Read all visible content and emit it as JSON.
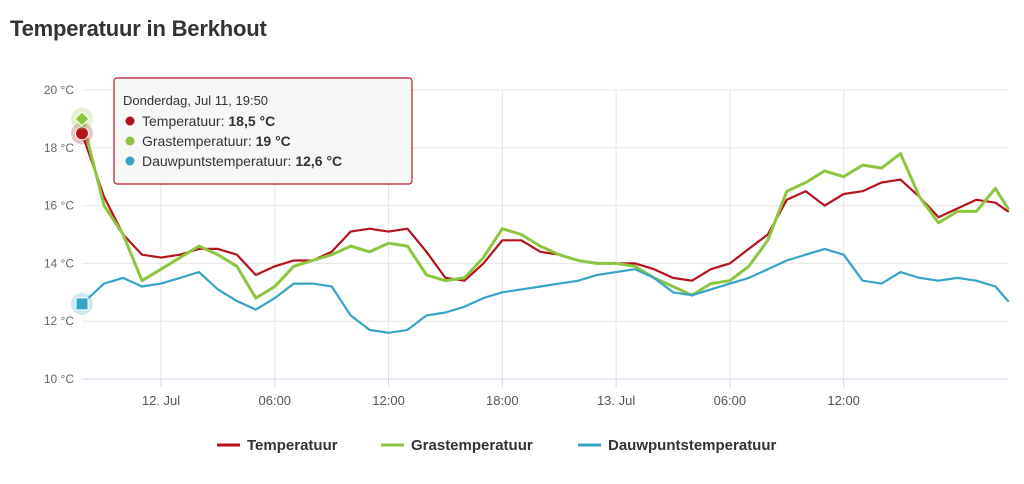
{
  "title": "Temperatuur in Berkhout",
  "colors": {
    "temperatuur": "#b5121b",
    "grastemperatuur": "#8cc63f",
    "dauwpunt": "#35a4c7",
    "grid": "#e6e6e6"
  },
  "tooltip": {
    "header": "Donderdag, Jul 11, 19:50",
    "rows": [
      {
        "name": "Temperatuur",
        "value": "18,5 °C"
      },
      {
        "name": "Grastemperatuur",
        "value": "19 °C"
      },
      {
        "name": "Dauwpuntstemperatuur",
        "value": "12,6 °C"
      }
    ]
  },
  "chart_data": {
    "type": "line",
    "title": "Temperatuur in Berkhout",
    "xlabel": "",
    "ylabel": "",
    "ylim": [
      10,
      20
    ],
    "xlim": [
      "2024-07-11T19:50",
      "2024-07-13T20:40"
    ],
    "y_ticks": [
      "10 °C",
      "12 °C",
      "14 °C",
      "16 °C",
      "18 °C",
      "20 °C"
    ],
    "x_ticks": [
      {
        "t": "2024-07-12T00:00",
        "label": "12. Jul"
      },
      {
        "t": "2024-07-12T06:00",
        "label": "06:00"
      },
      {
        "t": "2024-07-12T12:00",
        "label": "12:00"
      },
      {
        "t": "2024-07-12T18:00",
        "label": "18:00"
      },
      {
        "t": "2024-07-13T00:00",
        "label": "13. Jul"
      },
      {
        "t": "2024-07-13T06:00",
        "label": "06:00"
      },
      {
        "t": "2024-07-13T12:00",
        "label": "12:00"
      }
    ],
    "legend_position": "bottom",
    "grid": true,
    "series": [
      {
        "name": "Temperatuur",
        "points": [
          [
            "2024-07-11T19:50",
            18.5
          ],
          [
            "2024-07-11T21:00",
            16.3
          ],
          [
            "2024-07-11T22:00",
            15.0
          ],
          [
            "2024-07-11T23:00",
            14.3
          ],
          [
            "2024-07-12T00:00",
            14.2
          ],
          [
            "2024-07-12T01:00",
            14.3
          ],
          [
            "2024-07-12T02:00",
            14.5
          ],
          [
            "2024-07-12T03:00",
            14.5
          ],
          [
            "2024-07-12T04:00",
            14.3
          ],
          [
            "2024-07-12T05:00",
            13.6
          ],
          [
            "2024-07-12T06:00",
            13.9
          ],
          [
            "2024-07-12T07:00",
            14.1
          ],
          [
            "2024-07-12T08:00",
            14.1
          ],
          [
            "2024-07-12T09:00",
            14.4
          ],
          [
            "2024-07-12T10:00",
            15.1
          ],
          [
            "2024-07-12T11:00",
            15.2
          ],
          [
            "2024-07-12T12:00",
            15.1
          ],
          [
            "2024-07-12T13:00",
            15.2
          ],
          [
            "2024-07-12T14:00",
            14.4
          ],
          [
            "2024-07-12T15:00",
            13.5
          ],
          [
            "2024-07-12T16:00",
            13.4
          ],
          [
            "2024-07-12T17:00",
            14.0
          ],
          [
            "2024-07-12T18:00",
            14.8
          ],
          [
            "2024-07-12T19:00",
            14.8
          ],
          [
            "2024-07-12T20:00",
            14.4
          ],
          [
            "2024-07-12T21:00",
            14.3
          ],
          [
            "2024-07-12T22:00",
            14.1
          ],
          [
            "2024-07-12T23:00",
            14.0
          ],
          [
            "2024-07-13T00:00",
            14.0
          ],
          [
            "2024-07-13T01:00",
            14.0
          ],
          [
            "2024-07-13T02:00",
            13.8
          ],
          [
            "2024-07-13T03:00",
            13.5
          ],
          [
            "2024-07-13T04:00",
            13.4
          ],
          [
            "2024-07-13T05:00",
            13.8
          ],
          [
            "2024-07-13T06:00",
            14.0
          ],
          [
            "2024-07-13T07:00",
            14.5
          ],
          [
            "2024-07-13T08:00",
            15.0
          ],
          [
            "2024-07-13T09:00",
            16.2
          ],
          [
            "2024-07-13T10:00",
            16.5
          ],
          [
            "2024-07-13T11:00",
            16.0
          ],
          [
            "2024-07-13T12:00",
            16.4
          ],
          [
            "2024-07-13T13:00",
            16.5
          ],
          [
            "2024-07-13T14:00",
            16.8
          ],
          [
            "2024-07-13T15:00",
            16.9
          ],
          [
            "2024-07-13T16:00",
            16.3
          ],
          [
            "2024-07-13T17:00",
            15.6
          ],
          [
            "2024-07-13T18:00",
            15.9
          ],
          [
            "2024-07-13T19:00",
            16.2
          ],
          [
            "2024-07-13T20:00",
            16.1
          ],
          [
            "2024-07-13T20:40",
            15.8
          ]
        ]
      },
      {
        "name": "Grastemperatuur",
        "points": [
          [
            "2024-07-11T19:50",
            19.0
          ],
          [
            "2024-07-11T21:00",
            16.0
          ],
          [
            "2024-07-11T22:00",
            15.0
          ],
          [
            "2024-07-11T23:00",
            13.4
          ],
          [
            "2024-07-12T00:00",
            13.8
          ],
          [
            "2024-07-12T01:00",
            14.2
          ],
          [
            "2024-07-12T02:00",
            14.6
          ],
          [
            "2024-07-12T03:00",
            14.3
          ],
          [
            "2024-07-12T04:00",
            13.9
          ],
          [
            "2024-07-12T05:00",
            12.8
          ],
          [
            "2024-07-12T06:00",
            13.2
          ],
          [
            "2024-07-12T07:00",
            13.9
          ],
          [
            "2024-07-12T08:00",
            14.1
          ],
          [
            "2024-07-12T09:00",
            14.3
          ],
          [
            "2024-07-12T10:00",
            14.6
          ],
          [
            "2024-07-12T11:00",
            14.4
          ],
          [
            "2024-07-12T12:00",
            14.7
          ],
          [
            "2024-07-12T13:00",
            14.6
          ],
          [
            "2024-07-12T14:00",
            13.6
          ],
          [
            "2024-07-12T15:00",
            13.4
          ],
          [
            "2024-07-12T16:00",
            13.5
          ],
          [
            "2024-07-12T17:00",
            14.2
          ],
          [
            "2024-07-12T18:00",
            15.2
          ],
          [
            "2024-07-12T19:00",
            15.0
          ],
          [
            "2024-07-12T20:00",
            14.6
          ],
          [
            "2024-07-12T21:00",
            14.3
          ],
          [
            "2024-07-12T22:00",
            14.1
          ],
          [
            "2024-07-12T23:00",
            14.0
          ],
          [
            "2024-07-13T00:00",
            14.0
          ],
          [
            "2024-07-13T01:00",
            13.9
          ],
          [
            "2024-07-13T02:00",
            13.5
          ],
          [
            "2024-07-13T03:00",
            13.2
          ],
          [
            "2024-07-13T04:00",
            12.9
          ],
          [
            "2024-07-13T05:00",
            13.3
          ],
          [
            "2024-07-13T06:00",
            13.4
          ],
          [
            "2024-07-13T07:00",
            13.9
          ],
          [
            "2024-07-13T08:00",
            14.8
          ],
          [
            "2024-07-13T09:00",
            16.5
          ],
          [
            "2024-07-13T10:00",
            16.8
          ],
          [
            "2024-07-13T11:00",
            17.2
          ],
          [
            "2024-07-13T12:00",
            17.0
          ],
          [
            "2024-07-13T13:00",
            17.4
          ],
          [
            "2024-07-13T14:00",
            17.3
          ],
          [
            "2024-07-13T15:00",
            17.8
          ],
          [
            "2024-07-13T16:00",
            16.3
          ],
          [
            "2024-07-13T17:00",
            15.4
          ],
          [
            "2024-07-13T18:00",
            15.8
          ],
          [
            "2024-07-13T19:00",
            15.8
          ],
          [
            "2024-07-13T20:00",
            16.6
          ],
          [
            "2024-07-13T20:40",
            15.9
          ]
        ]
      },
      {
        "name": "Dauwpuntstemperatuur",
        "points": [
          [
            "2024-07-11T19:50",
            12.6
          ],
          [
            "2024-07-11T21:00",
            13.3
          ],
          [
            "2024-07-11T22:00",
            13.5
          ],
          [
            "2024-07-11T23:00",
            13.2
          ],
          [
            "2024-07-12T00:00",
            13.3
          ],
          [
            "2024-07-12T01:00",
            13.5
          ],
          [
            "2024-07-12T02:00",
            13.7
          ],
          [
            "2024-07-12T03:00",
            13.1
          ],
          [
            "2024-07-12T04:00",
            12.7
          ],
          [
            "2024-07-12T05:00",
            12.4
          ],
          [
            "2024-07-12T06:00",
            12.8
          ],
          [
            "2024-07-12T07:00",
            13.3
          ],
          [
            "2024-07-12T08:00",
            13.3
          ],
          [
            "2024-07-12T09:00",
            13.2
          ],
          [
            "2024-07-12T10:00",
            12.2
          ],
          [
            "2024-07-12T11:00",
            11.7
          ],
          [
            "2024-07-12T12:00",
            11.6
          ],
          [
            "2024-07-12T13:00",
            11.7
          ],
          [
            "2024-07-12T14:00",
            12.2
          ],
          [
            "2024-07-12T15:00",
            12.3
          ],
          [
            "2024-07-12T16:00",
            12.5
          ],
          [
            "2024-07-12T17:00",
            12.8
          ],
          [
            "2024-07-12T18:00",
            13.0
          ],
          [
            "2024-07-12T19:00",
            13.1
          ],
          [
            "2024-07-12T20:00",
            13.2
          ],
          [
            "2024-07-12T21:00",
            13.3
          ],
          [
            "2024-07-12T22:00",
            13.4
          ],
          [
            "2024-07-12T23:00",
            13.6
          ],
          [
            "2024-07-13T00:00",
            13.7
          ],
          [
            "2024-07-13T01:00",
            13.8
          ],
          [
            "2024-07-13T02:00",
            13.5
          ],
          [
            "2024-07-13T03:00",
            13.0
          ],
          [
            "2024-07-13T04:00",
            12.9
          ],
          [
            "2024-07-13T05:00",
            13.1
          ],
          [
            "2024-07-13T06:00",
            13.3
          ],
          [
            "2024-07-13T07:00",
            13.5
          ],
          [
            "2024-07-13T08:00",
            13.8
          ],
          [
            "2024-07-13T09:00",
            14.1
          ],
          [
            "2024-07-13T10:00",
            14.3
          ],
          [
            "2024-07-13T11:00",
            14.5
          ],
          [
            "2024-07-13T12:00",
            14.3
          ],
          [
            "2024-07-13T13:00",
            13.4
          ],
          [
            "2024-07-13T14:00",
            13.3
          ],
          [
            "2024-07-13T15:00",
            13.7
          ],
          [
            "2024-07-13T16:00",
            13.5
          ],
          [
            "2024-07-13T17:00",
            13.4
          ],
          [
            "2024-07-13T18:00",
            13.5
          ],
          [
            "2024-07-13T19:00",
            13.4
          ],
          [
            "2024-07-13T20:00",
            13.2
          ],
          [
            "2024-07-13T20:40",
            12.7
          ]
        ]
      }
    ]
  }
}
